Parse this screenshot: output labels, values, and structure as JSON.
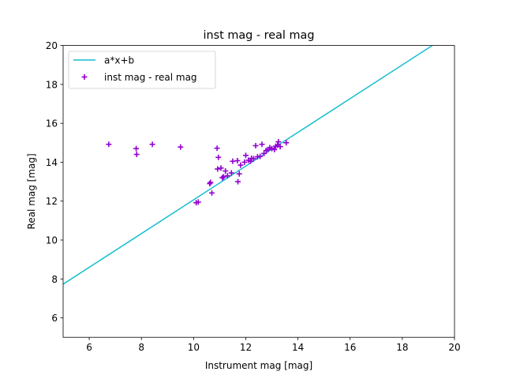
{
  "chart_data": {
    "type": "scatter",
    "title": "inst mag - real mag",
    "xlabel": "Instrument mag [mag]",
    "ylabel": "Real mag [mag]",
    "xlim": [
      5,
      20
    ],
    "ylim": [
      5,
      20
    ],
    "xticks": [
      6,
      8,
      10,
      12,
      14,
      16,
      18,
      20
    ],
    "yticks": [
      6,
      8,
      10,
      12,
      14,
      16,
      18,
      20
    ],
    "grid": false,
    "legend_position": "upper-left",
    "series": [
      {
        "name": "a*x+b",
        "kind": "line",
        "color": "#17becf",
        "x": [
          5.0,
          19.15
        ],
        "y": [
          7.73,
          20.0
        ]
      },
      {
        "name": "inst mag - real mag",
        "kind": "scatter",
        "marker": "+",
        "color": "#9400d3",
        "points": [
          [
            6.75,
            14.92
          ],
          [
            7.8,
            14.7
          ],
          [
            7.82,
            14.4
          ],
          [
            8.42,
            14.92
          ],
          [
            9.5,
            14.78
          ],
          [
            10.1,
            11.92
          ],
          [
            10.18,
            11.95
          ],
          [
            10.62,
            12.9
          ],
          [
            10.65,
            12.96
          ],
          [
            10.7,
            12.42
          ],
          [
            10.9,
            14.72
          ],
          [
            10.92,
            13.65
          ],
          [
            10.95,
            14.25
          ],
          [
            11.05,
            13.7
          ],
          [
            11.1,
            13.2
          ],
          [
            11.15,
            13.25
          ],
          [
            11.22,
            13.55
          ],
          [
            11.3,
            13.3
          ],
          [
            11.45,
            13.45
          ],
          [
            11.5,
            14.05
          ],
          [
            11.68,
            14.08
          ],
          [
            11.7,
            13.0
          ],
          [
            11.75,
            13.4
          ],
          [
            11.8,
            13.85
          ],
          [
            11.95,
            14.0
          ],
          [
            12.0,
            14.35
          ],
          [
            12.1,
            14.1
          ],
          [
            12.18,
            14.05
          ],
          [
            12.22,
            14.2
          ],
          [
            12.3,
            14.18
          ],
          [
            12.38,
            14.85
          ],
          [
            12.45,
            14.28
          ],
          [
            12.55,
            14.3
          ],
          [
            12.62,
            14.92
          ],
          [
            12.7,
            14.45
          ],
          [
            12.78,
            14.6
          ],
          [
            12.85,
            14.65
          ],
          [
            12.92,
            14.75
          ],
          [
            13.0,
            14.7
          ],
          [
            13.1,
            14.65
          ],
          [
            13.15,
            14.82
          ],
          [
            13.22,
            14.88
          ],
          [
            13.25,
            15.05
          ],
          [
            13.32,
            14.8
          ],
          [
            13.55,
            15.0
          ]
        ]
      }
    ]
  }
}
